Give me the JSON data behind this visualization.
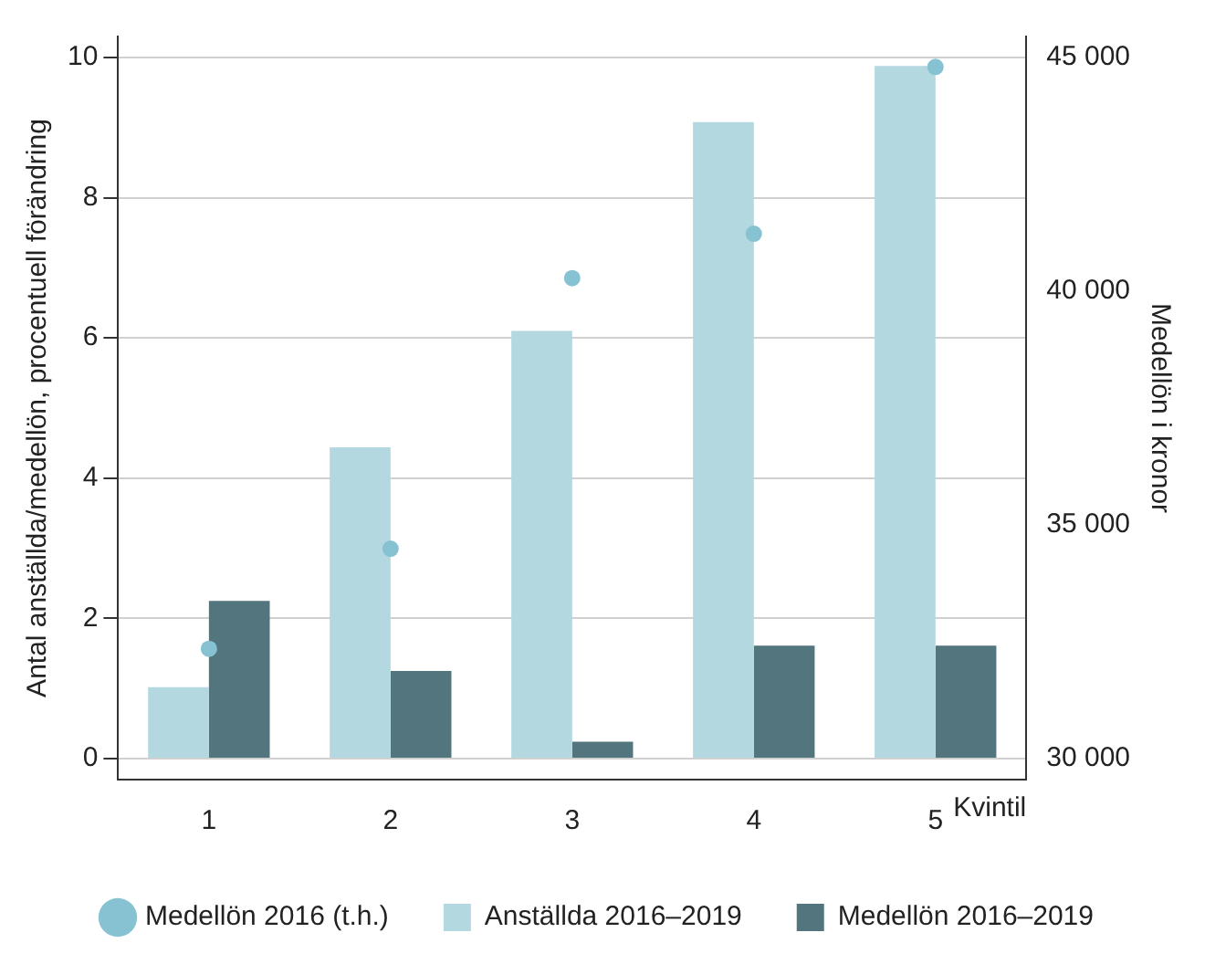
{
  "chart_data": {
    "type": "bar",
    "categories": [
      "1",
      "2",
      "3",
      "4",
      "5"
    ],
    "xlabel": "Kvintil",
    "ylabel": "Antal anställda/medellön, procentuell förändring",
    "y2label": "Medellön i kronor",
    "series": [
      {
        "name": "Anställda 2016–2019",
        "color": "#b3d8e0",
        "values": [
          1.02,
          4.44,
          6.1,
          9.08,
          9.88
        ]
      },
      {
        "name": "Medellön 2016–2019",
        "color": "#53767e",
        "values": [
          2.25,
          1.25,
          0.24,
          1.61,
          1.61
        ]
      },
      {
        "name": "Medellön 2016 (t.h.)",
        "type": "scatter",
        "axis": "y2",
        "color": "#86c2d2",
        "values": [
          32350,
          34490,
          40280,
          41230,
          44800
        ]
      }
    ],
    "ylim": [
      -0.3,
      10.3
    ],
    "yticks": [
      0,
      2,
      4,
      6,
      8,
      10
    ],
    "y2lim": [
      29550,
      45450
    ],
    "y2ticks": [
      {
        "value": 30000,
        "label": "30 000"
      },
      {
        "value": 35000,
        "label": "35 000"
      },
      {
        "value": 40000,
        "label": "40 000"
      },
      {
        "value": 45000,
        "label": "45 000"
      }
    ],
    "grid": "y",
    "legend": "bottom",
    "marker": "circle"
  }
}
